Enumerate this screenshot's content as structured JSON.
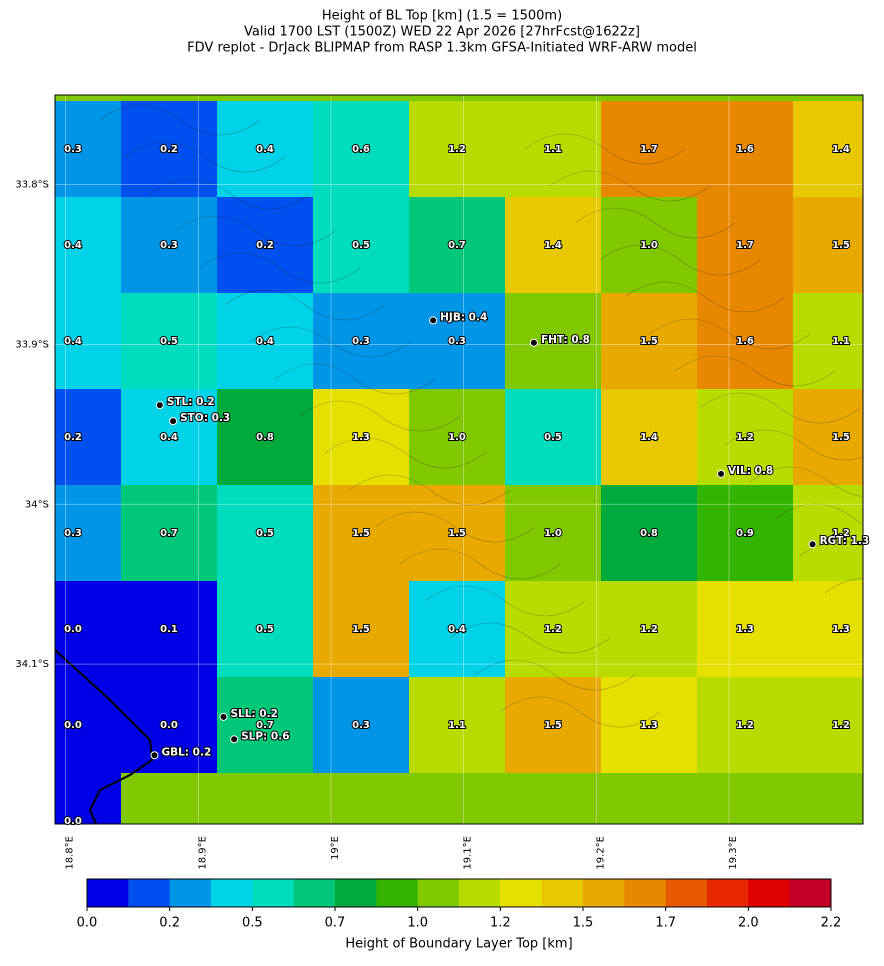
{
  "title": [
    "Height of BL Top [km] (1.5 = 1500m)",
    "Valid 1700 LST (1500Z) WED 22 Apr 2026 [27hrFcst@1622z]",
    "FDV replot - DrJack BLIPMAP from RASP 1.3km GFSA-Initiated WRF-ARW model"
  ],
  "map": {
    "xlim": [
      18.792,
      19.401
    ],
    "ylim": [
      -34.2,
      -33.744
    ],
    "xticks": [
      {
        "value": 18.8,
        "label": "18.8°E"
      },
      {
        "value": 18.9,
        "label": "18.9°E"
      },
      {
        "value": 19.0,
        "label": "19°E"
      },
      {
        "value": 19.1,
        "label": "19.1°E"
      },
      {
        "value": 19.2,
        "label": "19.2°E"
      },
      {
        "value": 19.3,
        "label": "19.3°E"
      }
    ],
    "yticks": [
      {
        "value": -33.8,
        "label": "33.8°S"
      },
      {
        "value": -33.9,
        "label": "33.9°S"
      },
      {
        "value": -34.0,
        "label": "34°S"
      },
      {
        "value": -34.1,
        "label": "34.1°S"
      }
    ],
    "field": {
      "values": [
        [
          0.3,
          0.2,
          0.4,
          0.6,
          1.2,
          1.1,
          1.7,
          1.6,
          1.4
        ],
        [
          0.4,
          0.3,
          0.2,
          0.5,
          0.7,
          1.4,
          1.0,
          1.7,
          1.5
        ],
        [
          0.4,
          0.5,
          0.4,
          0.3,
          0.3,
          null,
          1.5,
          1.6,
          1.1
        ],
        [
          0.2,
          0.4,
          0.8,
          1.3,
          1.0,
          0.5,
          1.4,
          1.2,
          1.5
        ],
        [
          0.3,
          0.7,
          0.5,
          1.5,
          1.5,
          1.0,
          0.8,
          0.9,
          1.2
        ],
        [
          0.0,
          0.1,
          0.5,
          1.5,
          0.4,
          1.2,
          1.2,
          1.3,
          1.3
        ],
        [
          0.0,
          0.0,
          0.7,
          0.3,
          1.1,
          1.5,
          1.3,
          1.2,
          1.2
        ],
        [
          0.0
        ]
      ],
      "value_labels": [
        [
          "0.3",
          "0.2",
          "0.4",
          "0.6",
          "1.2",
          "1.1",
          "1.7",
          "1.6",
          "1.4"
        ],
        [
          "0.4",
          "0.3",
          "0.2",
          "0.5",
          "0.7",
          "1.4",
          "1.0",
          "1.7",
          "1.5"
        ],
        [
          "0.4",
          "0.5",
          "0.4",
          "0.3",
          "0.3",
          null,
          "1.5",
          "1.6",
          "1.1"
        ],
        [
          "0.2",
          "0.4",
          "0.8",
          "1.3",
          "1.0",
          "0.5",
          "1.4",
          "1.2",
          "1.5"
        ],
        [
          "0.3",
          "0.7",
          "0.5",
          "1.5",
          "1.5",
          "1.0",
          "0.8",
          "0.9",
          "1.2"
        ],
        [
          "0.0",
          "0.1",
          "0.5",
          "1.5",
          "0.4",
          "1.2",
          "1.2",
          "1.3",
          "1.3"
        ],
        [
          "0.0",
          "0.0",
          "0.7",
          "0.3",
          "1.1",
          "1.5",
          "1.3",
          "1.2",
          "1.2"
        ],
        [
          "0.0"
        ]
      ]
    },
    "stations": [
      {
        "label": "HJB: 0.4",
        "lon": 19.077,
        "lat": -33.885
      },
      {
        "label": "FHT: 0.8",
        "lon": 19.153,
        "lat": -33.899
      },
      {
        "label": "STL: 0.2",
        "lon": 18.871,
        "lat": -33.938
      },
      {
        "label": "STO: 0.3",
        "lon": 18.881,
        "lat": -33.948
      },
      {
        "label": "VIL: 0.8",
        "lon": 19.294,
        "lat": -33.981
      },
      {
        "label": "RGT: 1.3",
        "lon": 19.363,
        "lat": -34.025
      },
      {
        "label": "SLL: 0.2",
        "lon": 18.919,
        "lat": -34.133
      },
      {
        "label": "SLP: 0.6",
        "lon": 18.927,
        "lat": -34.147
      },
      {
        "label": "GBL: 0.2",
        "lon": 18.867,
        "lat": -34.157
      }
    ]
  },
  "colorbar": {
    "label": "Height of Boundary Layer Top [km]",
    "lim": [
      0,
      2.2
    ],
    "colors": [
      "#0000e6",
      "#0050f0",
      "#0096e8",
      "#00d2e8",
      "#00dcbe",
      "#00c878",
      "#00aa3c",
      "#32b400",
      "#80c800",
      "#b8dc00",
      "#e6e000",
      "#e8c800",
      "#e8aa00",
      "#e88800",
      "#e85800",
      "#e82800",
      "#e00000",
      "#c00028"
    ],
    "ticks": [
      {
        "value": 0,
        "label": "0.0"
      },
      {
        "value": 0.2444,
        "label": "0.2"
      },
      {
        "value": 0.4889,
        "label": "0.5"
      },
      {
        "value": 0.7333,
        "label": "0.7"
      },
      {
        "value": 0.9778,
        "label": "1.0"
      },
      {
        "value": 1.2222,
        "label": "1.2"
      },
      {
        "value": 1.4667,
        "label": "1.5"
      },
      {
        "value": 1.7111,
        "label": "1.7"
      },
      {
        "value": 1.9556,
        "label": "2.0"
      },
      {
        "value": 2.2,
        "label": "2.2"
      }
    ]
  }
}
